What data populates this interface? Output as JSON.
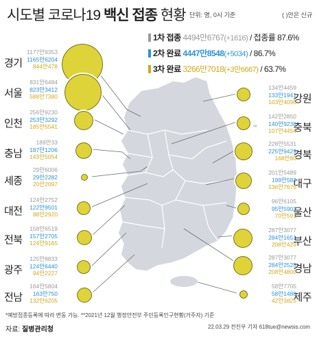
{
  "title": {
    "pre": "시도별 코로나19 ",
    "bold": "백신 접종",
    "post": " 현황"
  },
  "unit_text": "단위: 명, 0시 기준",
  "legend_note": "( )안은 신규",
  "summary": [
    {
      "label": "1차 접종",
      "value": "4494만6767",
      "new": "(+1616)",
      "tail": "/ 접종률 87.6%",
      "color": "#9b9b9b"
    },
    {
      "label": "2차 완료",
      "value": "4447만8548",
      "new": "(+5034)",
      "tail": "/ 86.7%",
      "color": "#2b93d6"
    },
    {
      "label": "3차 완료",
      "value": "3266만7018",
      "new": "(+3만6667)",
      "tail": "/ 63.7%",
      "color": "#d2a81a"
    }
  ],
  "regions_left": [
    {
      "name": "경기",
      "v1": "1177만9353",
      "v2": "1165만6204",
      "v3": "844만478"
    },
    {
      "name": "서울",
      "v1": "831만6484",
      "v2": "823만3412",
      "v3": "588만7380"
    },
    {
      "name": "인천",
      "v1": "256만9230",
      "v2": "253만3292",
      "v3": "185만5541"
    },
    {
      "name": "충남",
      "v1": "189만33",
      "v2": "187만1206",
      "v3": "143만5054"
    },
    {
      "name": "세종",
      "v1": "29만6006",
      "v2": "29만2282",
      "v3": "20만2097"
    },
    {
      "name": "대전",
      "v1": "124만2752",
      "v2": "122만9501",
      "v3": "88만2920"
    },
    {
      "name": "전북",
      "v1": "158만6519",
      "v2": "157만2705",
      "v3": "124만9165"
    },
    {
      "name": "광주",
      "v1": "125만8833",
      "v2": "124만6440",
      "v3": "94만2227"
    },
    {
      "name": "전남",
      "v1": "164만5804",
      "v2": "163만750",
      "v3": "132만6205"
    }
  ],
  "regions_right": [
    {
      "name": "강원",
      "v1": "134만4459",
      "v2": "133만1941",
      "v3": "103만4096"
    },
    {
      "name": "충북",
      "v1": "142만2850",
      "v2": "140만9238",
      "v3": "107만4454"
    },
    {
      "name": "경북",
      "v1": "228만5531",
      "v2": "225만9429",
      "v3": "168만80"
    },
    {
      "name": "대구",
      "v1": "201만5489",
      "v2": "199만582",
      "v3": "136만7676"
    },
    {
      "name": "울산",
      "v1": "96만6105",
      "v2": "95만5902",
      "v3": "70만591"
    },
    {
      "name": "부산",
      "v1": "287만3077",
      "v2": "284만1651",
      "v3": "208만429"
    },
    {
      "name": "경남",
      "v1": "287만3077",
      "v2": "284만2525",
      "v3": "208만4800"
    },
    {
      "name": "제주",
      "v1": "58만7705",
      "v2": "58만1488",
      "v3": "42만3825"
    }
  ],
  "footnote": "*예방접종등록에 따라 변동 가능.  **2021년 12월 행정안전부 주민등록인구현황(거주자) 기준",
  "source": {
    "label": "자료: ",
    "org": "질병관리청"
  },
  "credit": "22.03.29 전진우 기자  618tue@newsis.com"
}
